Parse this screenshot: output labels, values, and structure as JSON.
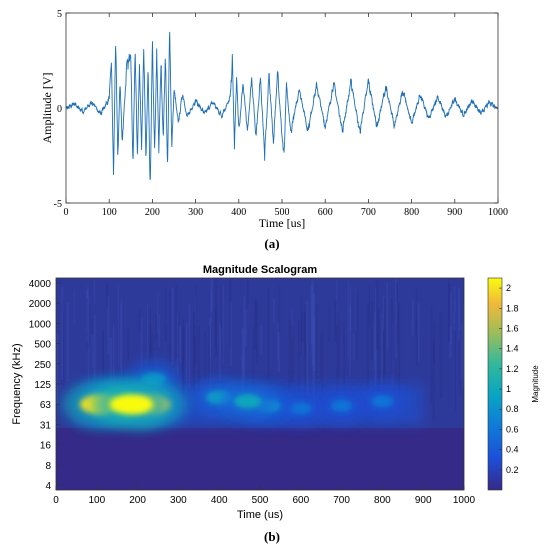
{
  "chart_data": [
    {
      "type": "line",
      "panel_label": "(a)",
      "xlabel": "Time [us]",
      "ylabel": "Amplitude [V]",
      "xlim": [
        0,
        1000
      ],
      "ylim": [
        -5,
        5
      ],
      "x_ticks": [
        0,
        100,
        200,
        300,
        400,
        500,
        600,
        700,
        800,
        900,
        1000
      ],
      "y_ticks": [
        5,
        0,
        -5
      ],
      "line_color": "#1f6fb5",
      "grid": false,
      "series": [
        {
          "x": [
            0,
            20,
            40,
            60,
            80,
            100,
            105,
            110,
            115,
            120,
            125,
            130,
            140,
            150,
            155,
            160,
            165,
            170,
            175,
            180,
            185,
            190,
            195,
            200,
            205,
            210,
            215,
            220,
            225,
            230,
            235,
            240,
            245,
            250,
            260,
            270,
            280,
            300,
            320,
            340,
            360,
            380,
            385,
            390,
            395,
            400,
            410,
            420,
            430,
            440,
            450,
            460,
            470,
            480,
            490,
            500,
            505,
            510,
            520,
            540,
            560,
            580,
            600,
            620,
            640,
            660,
            680,
            700,
            720,
            740,
            760,
            780,
            800,
            820,
            840,
            860,
            880,
            900,
            920,
            940,
            960,
            980,
            1000
          ],
          "values": [
            0,
            0.2,
            -0.2,
            0.3,
            -0.3,
            0.5,
            2.5,
            -3.5,
            3.7,
            -2.8,
            1.5,
            -1.8,
            2.0,
            3.0,
            -3.2,
            3.3,
            -2.5,
            2.2,
            -2.0,
            3.2,
            -2.7,
            2.0,
            -4.5,
            3.6,
            -2.5,
            2.8,
            -2.2,
            2.5,
            -1.8,
            3.0,
            -3.3,
            4.3,
            -2.2,
            1.0,
            -0.8,
            0.8,
            -0.5,
            0.4,
            -0.3,
            0.3,
            -0.4,
            0.5,
            2.5,
            -2.0,
            1.7,
            -1.3,
            1.3,
            -1.2,
            1.5,
            -1.5,
            1.6,
            -2.5,
            1.8,
            -1.8,
            1.9,
            -1.5,
            -2.5,
            1.2,
            -1.3,
            1.0,
            -1.2,
            1.2,
            -1.0,
            1.3,
            -1.2,
            1.4,
            -1.3,
            1.4,
            -1.0,
            1.1,
            -0.9,
            0.9,
            -0.8,
            0.7,
            -0.6,
            0.6,
            -0.5,
            0.5,
            -0.4,
            0.4,
            -0.3,
            0.3,
            0
          ]
        }
      ]
    },
    {
      "type": "heatmap",
      "panel_label": "(b)",
      "title": "Magnitude Scalogram",
      "xlabel": "Time (us)",
      "ylabel": "Frequency (kHz)",
      "xlim": [
        0,
        1000
      ],
      "x_ticks": [
        0,
        100,
        200,
        300,
        400,
        500,
        600,
        700,
        800,
        900,
        1000
      ],
      "y_ticks": [
        "4000",
        "2000",
        "1000",
        "500",
        "250",
        "125",
        "63",
        "31",
        "16",
        "8",
        "4"
      ],
      "colorbar": {
        "label": "Magnitude",
        "ticks": [
          "2",
          "1.8",
          "1.6",
          "1.4",
          "1.2",
          "1",
          "0.8",
          "0.6",
          "0.4",
          "0.2"
        ],
        "range": [
          0,
          2.1
        ],
        "colormap": "parula"
      },
      "hotspots": [
        {
          "time": 110,
          "freq_khz": 63,
          "magnitude": 2.0
        },
        {
          "time": 185,
          "freq_khz": 63,
          "magnitude": 2.1
        },
        {
          "time": 230,
          "freq_khz": 63,
          "magnitude": 1.9
        },
        {
          "time": 150,
          "freq_khz": 80,
          "magnitude": 1.3
        },
        {
          "time": 240,
          "freq_khz": 150,
          "magnitude": 0.8
        },
        {
          "time": 400,
          "freq_khz": 80,
          "magnitude": 0.9
        },
        {
          "time": 470,
          "freq_khz": 70,
          "magnitude": 1.0
        },
        {
          "time": 520,
          "freq_khz": 60,
          "magnitude": 0.8
        },
        {
          "time": 600,
          "freq_khz": 55,
          "magnitude": 0.6
        },
        {
          "time": 700,
          "freq_khz": 60,
          "magnitude": 0.6
        },
        {
          "time": 800,
          "freq_khz": 70,
          "magnitude": 0.6
        }
      ]
    }
  ]
}
